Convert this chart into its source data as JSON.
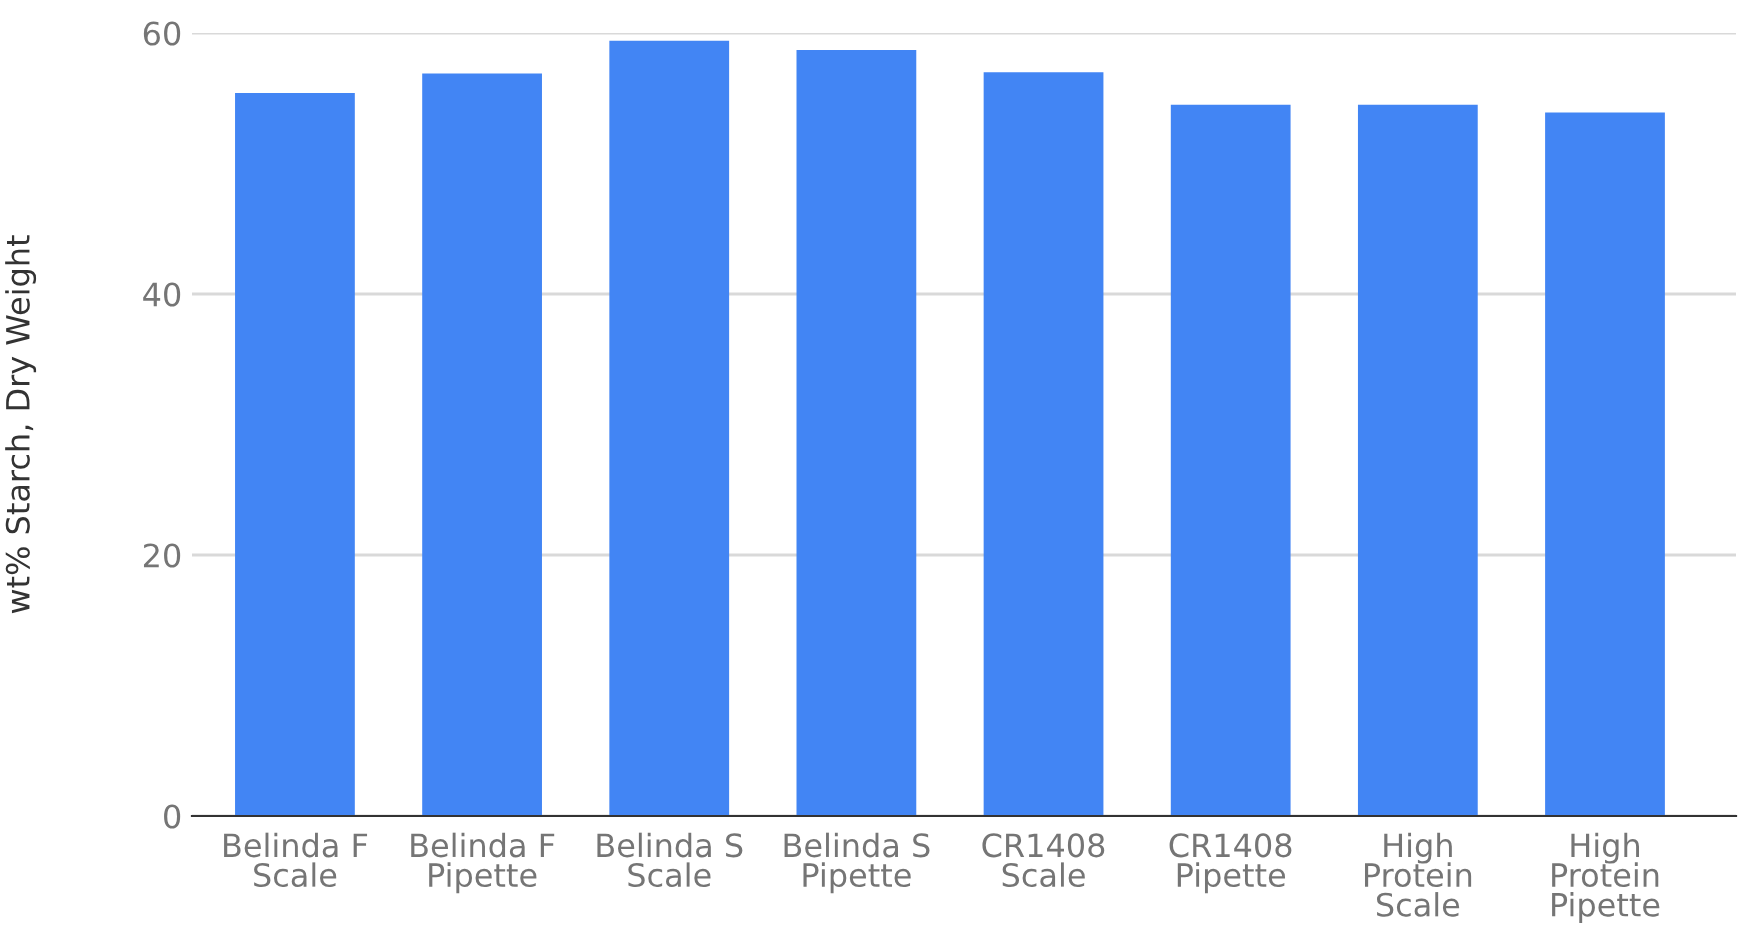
{
  "chart_data": {
    "type": "bar",
    "ylabel": "wt% Starch, Dry Weight",
    "categories": [
      "Belinda F\nScale",
      "Belinda F\nPipette",
      "Belinda S\nScale",
      "Belinda S\nPipette",
      "CR1408\nScale",
      "CR1408\nPipette",
      "High\nProtein\nScale",
      "High\nProtein\nPipette"
    ],
    "values": [
      55.4,
      56.9,
      59.4,
      58.7,
      57.0,
      54.5,
      54.5,
      53.9
    ],
    "color": "#4285f4",
    "ylim": [
      0,
      60
    ],
    "yticks": [
      0,
      20,
      40,
      60
    ],
    "grid": "y"
  }
}
